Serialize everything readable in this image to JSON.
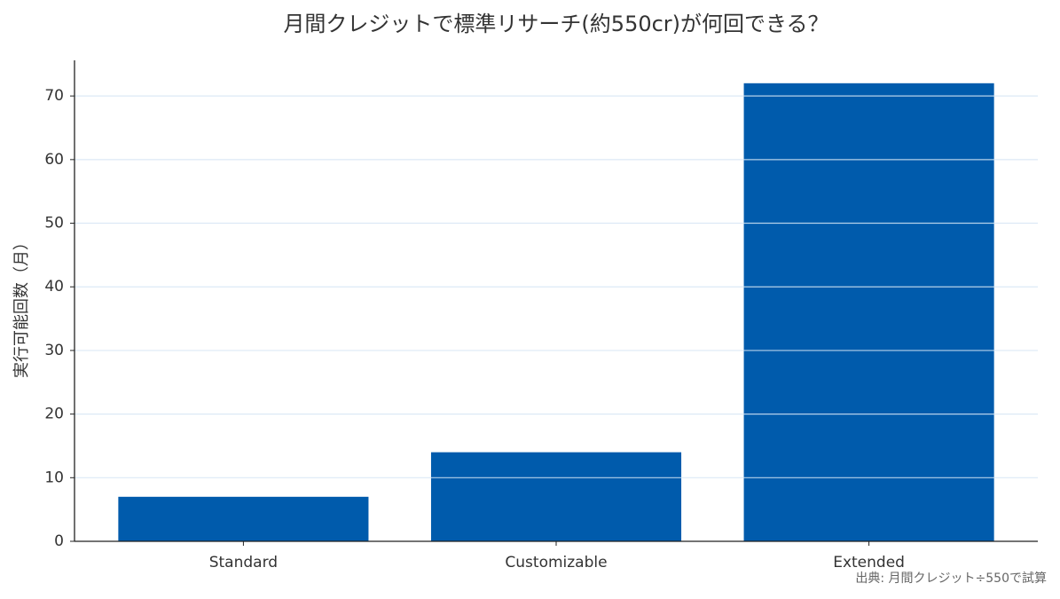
{
  "chart_data": {
    "type": "bar",
    "title": "月間クレジットで標準リサーチ(約550cr)が何回できる？",
    "y_label": "実行可能回数（月）",
    "source_note": "出典: 月間クレジット÷550で試算",
    "categories": [
      "Standard",
      "Customizable",
      "Extended"
    ],
    "values": [
      7,
      14,
      72
    ],
    "color": "#005bac",
    "ylim": [
      0,
      75.6
    ],
    "yticks": [
      0,
      10,
      20,
      30,
      40,
      50,
      60,
      70
    ],
    "grid": true,
    "grid_color": "#d6e6f5"
  }
}
